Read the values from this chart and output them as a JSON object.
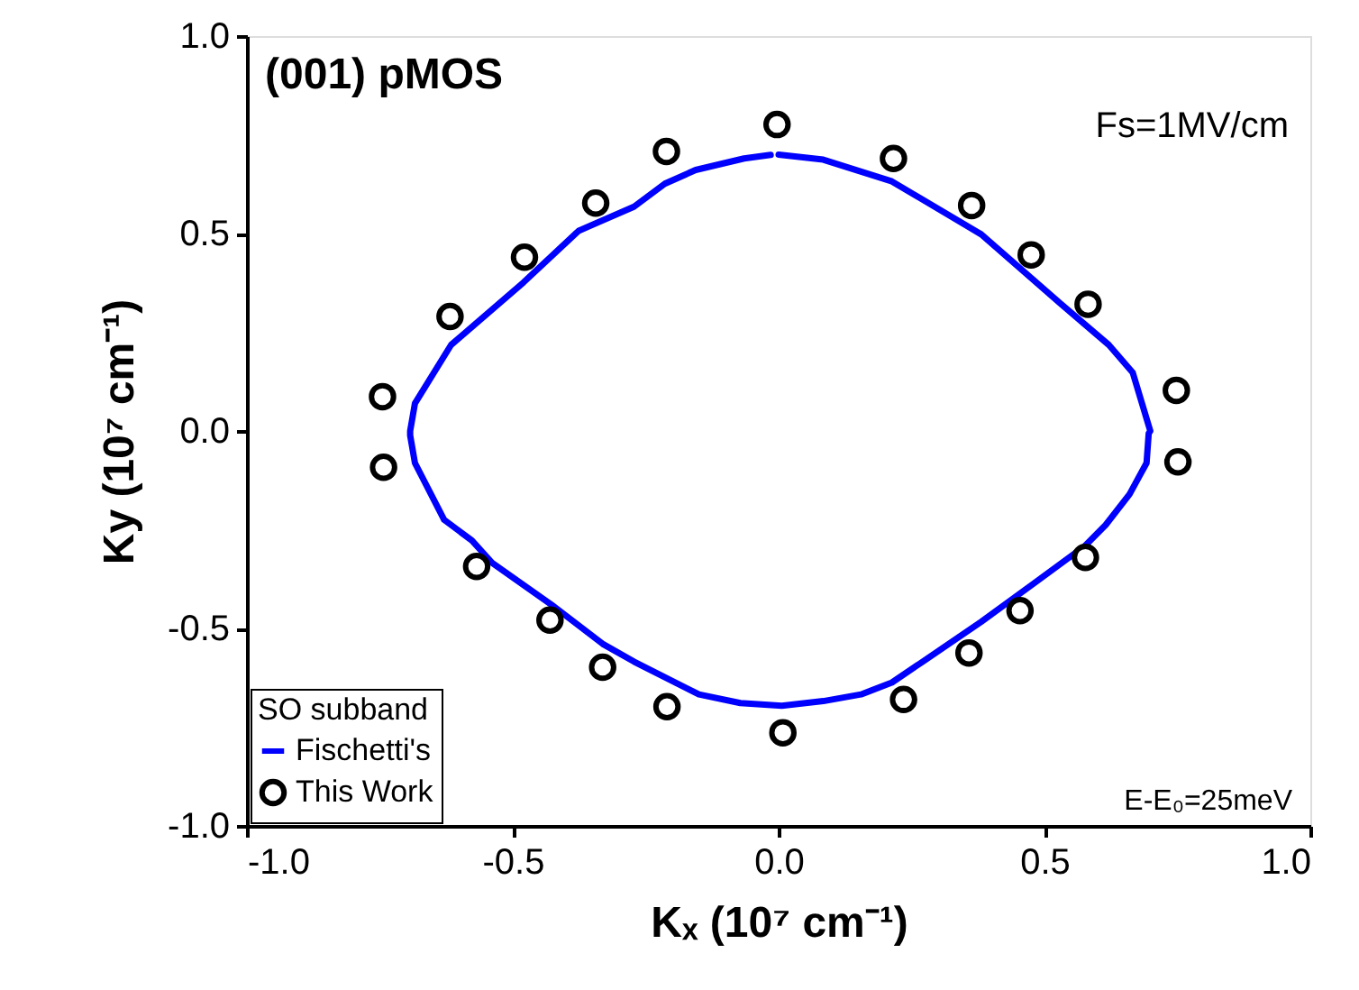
{
  "chart_data": {
    "type": "scatter",
    "xlabel": "Kₓ (10⁷ cm⁻¹)",
    "ylabel": "Ky (10⁷ cm⁻¹)",
    "xlim": [
      -1.0,
      1.0
    ],
    "ylim": [
      -1.0,
      1.0
    ],
    "xticks": [
      {
        "value": -1.0,
        "label": "-1.0"
      },
      {
        "value": -0.5,
        "label": "-0.5"
      },
      {
        "value": 0,
        "label": "0.0"
      },
      {
        "value": 0.5,
        "label": "0.5"
      },
      {
        "value": 1.0,
        "label": "1.0"
      }
    ],
    "yticks": [
      {
        "value": -1.0,
        "label": "-1.0"
      },
      {
        "value": -0.5,
        "label": "-0.5"
      },
      {
        "value": 0,
        "label": "0.0"
      },
      {
        "value": 0.5,
        "label": "0.5"
      },
      {
        "value": 1.0,
        "label": "1.0"
      }
    ],
    "grid": false,
    "legend": "bottom left",
    "legend_title": "SO subband",
    "annotations": [
      "(001) pMOS",
      "Fs=1MV/cm",
      "E-E₀=25meV"
    ],
    "series": [
      {
        "name": "Fischetti's",
        "type": "line",
        "color": "#0000ff",
        "line_style": "solid",
        "x": [
          0.0,
          0.084,
          0.213,
          0.381,
          0.53,
          0.621,
          0.666,
          0.699,
          0.696,
          0.692,
          0.66,
          0.615,
          0.576,
          0.479,
          0.381,
          0.271,
          0.213,
          0.155,
          0.084,
          0.006,
          -0.072,
          -0.15,
          -0.272,
          -0.331,
          -0.428,
          -0.538,
          -0.577,
          -0.629,
          -0.684,
          -0.693,
          -0.693,
          -0.684,
          -0.616,
          -0.48,
          -0.376,
          -0.272,
          -0.214,
          -0.156,
          -0.065,
          -0.015
        ],
        "values": [
          0.7,
          0.687,
          0.632,
          0.498,
          0.323,
          0.218,
          0.148,
          0.0,
          -0.006,
          -0.081,
          -0.16,
          -0.238,
          -0.291,
          -0.387,
          -0.483,
          -0.584,
          -0.637,
          -0.667,
          -0.684,
          -0.696,
          -0.689,
          -0.667,
          -0.584,
          -0.539,
          -0.439,
          -0.335,
          -0.277,
          -0.225,
          -0.081,
          -0.011,
          0.0,
          0.07,
          0.218,
          0.376,
          0.507,
          0.568,
          0.626,
          0.661,
          0.69,
          0.699
        ]
      },
      {
        "name": "This Work",
        "color": "#000000",
        "marker": "circle",
        "x": [
          -0.745,
          -0.618,
          -0.478,
          -0.344,
          -0.211,
          -0.003,
          0.216,
          0.363,
          0.475,
          0.582,
          0.748,
          -0.743,
          -0.568,
          -0.43,
          -0.331,
          -0.21,
          0.008,
          0.235,
          0.358,
          0.454,
          0.577,
          0.751
        ],
        "values": [
          0.087,
          0.29,
          0.44,
          0.577,
          0.708,
          0.776,
          0.69,
          0.571,
          0.446,
          0.321,
          0.103,
          -0.092,
          -0.343,
          -0.479,
          -0.598,
          -0.698,
          -0.764,
          -0.68,
          -0.562,
          -0.455,
          -0.32,
          -0.078
        ]
      }
    ]
  }
}
